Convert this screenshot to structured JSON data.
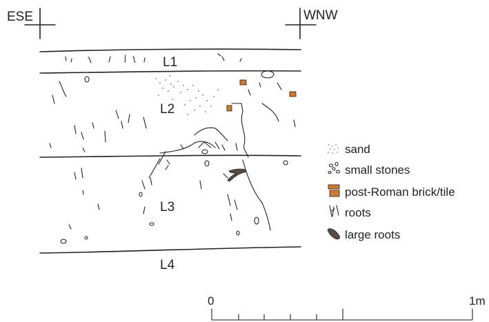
{
  "orientation": {
    "left": "ESE",
    "right": "WNW"
  },
  "layers": [
    "L1",
    "L2",
    "L3",
    "L4"
  ],
  "legend": [
    {
      "label": "sand",
      "icon": "sand-icon"
    },
    {
      "label": "small stones",
      "icon": "small-stones-icon"
    },
    {
      "label": "post-Roman brick/tile",
      "icon": "brick-tile-icon",
      "color": "#d07a2a"
    },
    {
      "label": "roots",
      "icon": "roots-icon"
    },
    {
      "label": "large roots",
      "icon": "large-roots-icon",
      "color": "#5a4a42"
    }
  ],
  "scale": {
    "start": "0",
    "end": "1m"
  },
  "colors": {
    "ink": "#231f20",
    "brick": "#d07a2a",
    "large_root": "#5a4a42"
  }
}
